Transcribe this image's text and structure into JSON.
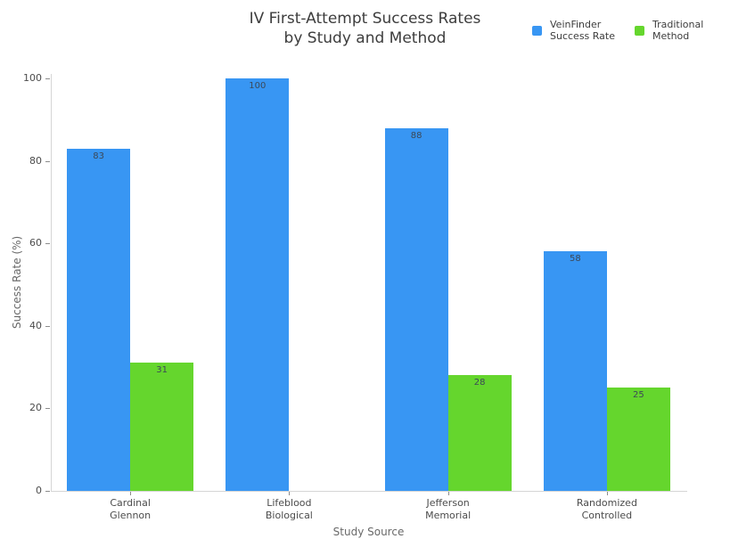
{
  "chart_data": {
    "type": "bar",
    "title": "IV First-Attempt Success Rates\nby Study and Method",
    "xlabel": "Study Source",
    "ylabel": "Success Rate (%)",
    "categories": [
      "Cardinal\nGlennon",
      "Lifeblood\nBiological",
      "Jefferson\nMemorial",
      "Randomized\nControlled"
    ],
    "series": [
      {
        "name": "VeinFinder\nSuccess Rate",
        "color": "#3896f3",
        "values": [
          83,
          100,
          88,
          58
        ]
      },
      {
        "name": "Traditional\nMethod",
        "color": "#65d62d",
        "values": [
          31,
          null,
          28,
          25
        ]
      }
    ],
    "ylim": [
      0,
      100
    ],
    "yticks": [
      0,
      20,
      40,
      60,
      80,
      100
    ],
    "grid": false,
    "legend_position": "top-right",
    "bar_value_labels": true,
    "background": "#ffffff"
  }
}
